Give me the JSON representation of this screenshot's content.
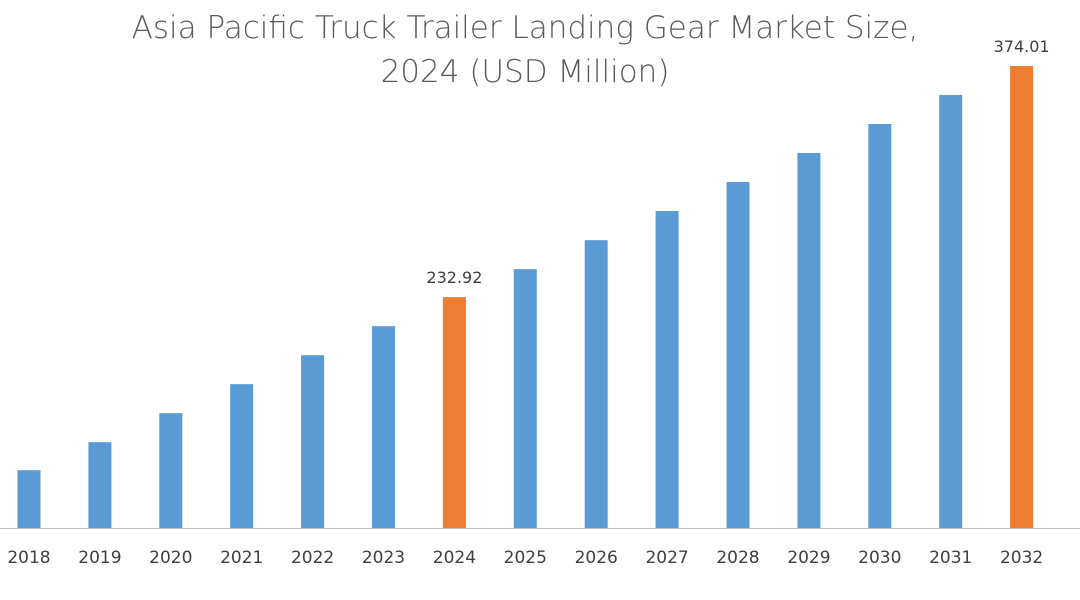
{
  "chart_data": {
    "type": "bar",
    "title": "Asia Pacific Truck Trailer Landing Gear Market Size, 2024 (USD Million)",
    "title_lines": [
      "Asia Pacific Truck Trailer Landing Gear Market Size,",
      "2024 (USD Million)"
    ],
    "categories": [
      "2018",
      "2019",
      "2020",
      "2021",
      "2022",
      "2023",
      "2024",
      "2025",
      "2026",
      "2027",
      "2028",
      "2029",
      "2030",
      "2031",
      "2032"
    ],
    "values": [
      127.3,
      144.4,
      162.1,
      179.8,
      197.5,
      215.2,
      232.92,
      250.0,
      267.7,
      285.5,
      303.2,
      320.9,
      338.6,
      356.3,
      374.01
    ],
    "data_labels": {
      "2024": "232.92",
      "2032": "374.01"
    },
    "highlight_categories": [
      "2024",
      "2032"
    ],
    "colors": {
      "default": "#5B9BD5",
      "highlight": "#ED7D31",
      "axis": "#BFBFBF",
      "text": "#595959"
    },
    "xlabel": "",
    "ylabel": "",
    "ylim": [
      92,
      374.01
    ],
    "grid": false,
    "legend": "none"
  }
}
